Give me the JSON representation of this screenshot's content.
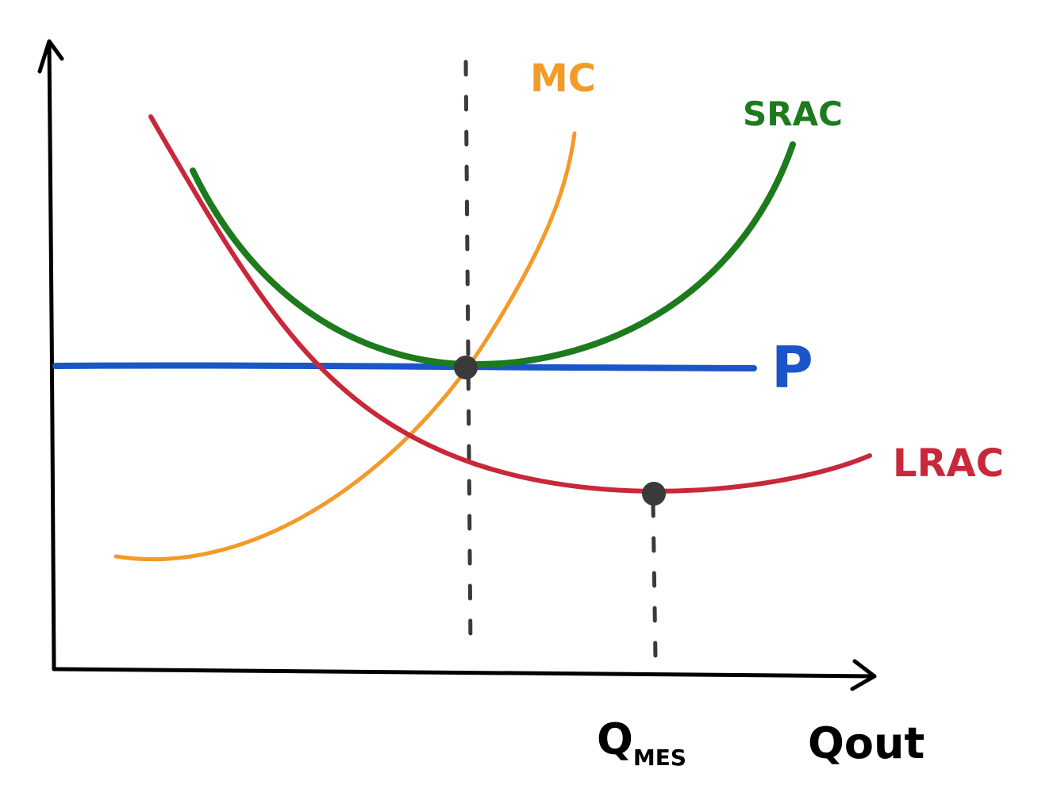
{
  "diagram": {
    "colors": {
      "axis": "#000000",
      "mc": "#f39a28",
      "srac": "#1d7a1d",
      "lrac": "#c8283a",
      "price": "#1a56c8",
      "guide": "#3a3a3a",
      "point": "#3a3a3a"
    },
    "labels": {
      "mc": "MC",
      "srac": "SRAC",
      "price": "P",
      "lrac": "LRAC",
      "q_mes": "Q",
      "q_mes_sub": "MES",
      "q_out": "Qout"
    }
  }
}
